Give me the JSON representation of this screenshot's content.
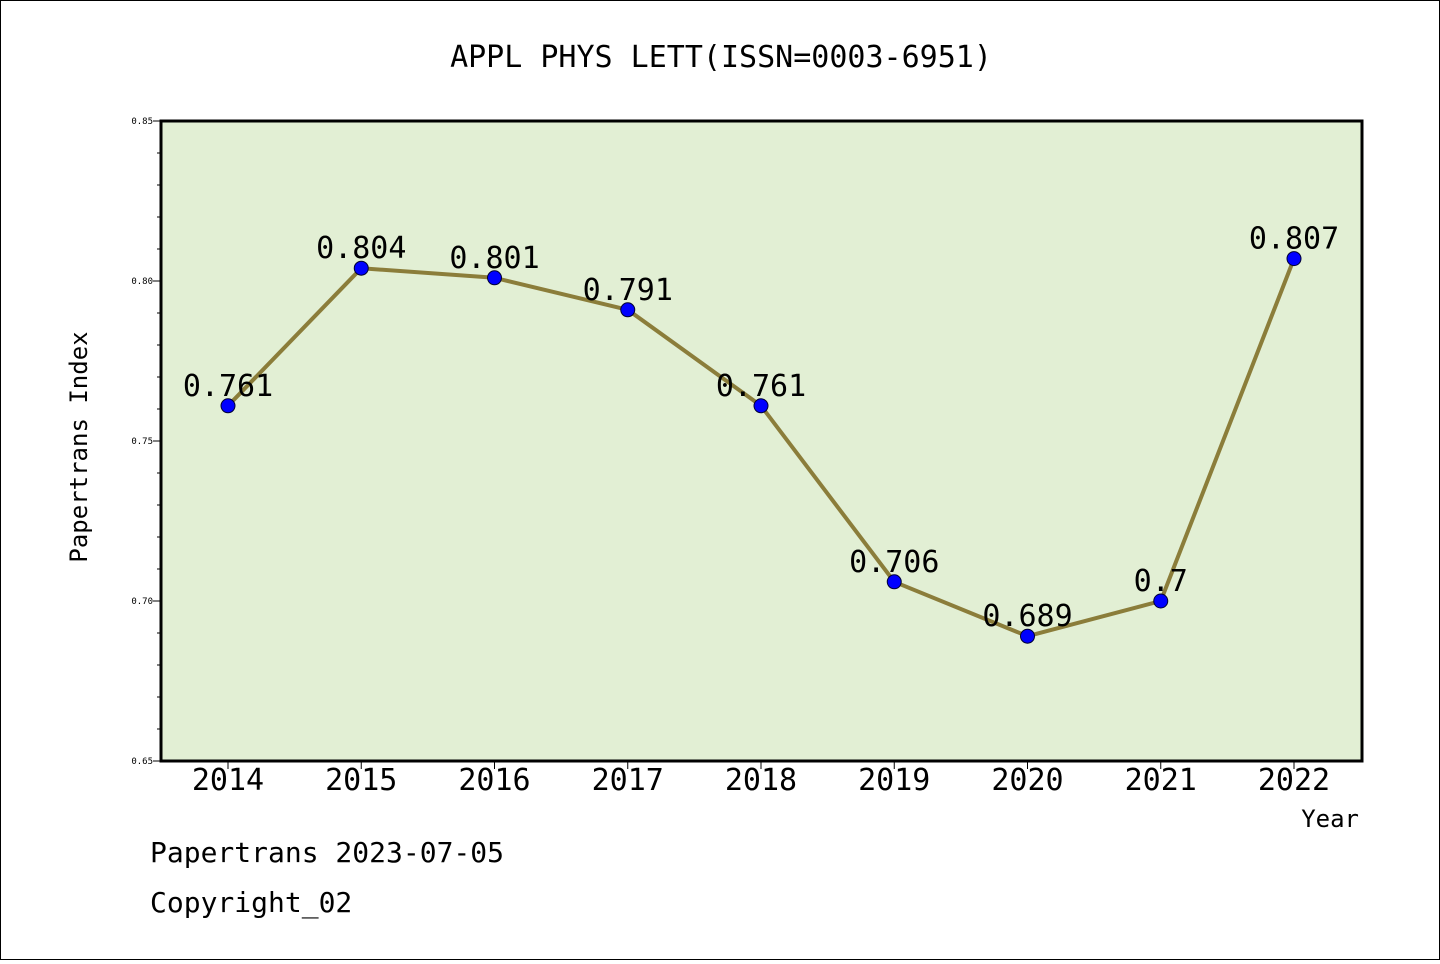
{
  "chart_data": {
    "type": "line",
    "title": "APPL PHYS LETT(ISSN=0003-6951)",
    "xlabel": "Year",
    "ylabel": "Papertrans Index",
    "categories": [
      "2014",
      "2015",
      "2016",
      "2017",
      "2018",
      "2019",
      "2020",
      "2021",
      "2022"
    ],
    "values": [
      0.761,
      0.804,
      0.801,
      0.791,
      0.761,
      0.706,
      0.689,
      0.7,
      0.807
    ],
    "data_labels": [
      "0.761",
      "0.804",
      "0.801",
      "0.791",
      "0.761",
      "0.706",
      "0.689",
      "0.7",
      "0.807"
    ],
    "ylim": [
      0.65,
      0.85
    ],
    "y_ticks": [
      "0.65",
      "0.70",
      "0.75",
      "0.80",
      "0.85"
    ],
    "grid": false,
    "legend": "none",
    "colors": {
      "line": "#8b7d3a",
      "marker": "#0000ff",
      "plot_background": "#e2efd4"
    }
  },
  "footer": {
    "line1": "Papertrans 2023-07-05",
    "line2": "Copyright_02"
  }
}
